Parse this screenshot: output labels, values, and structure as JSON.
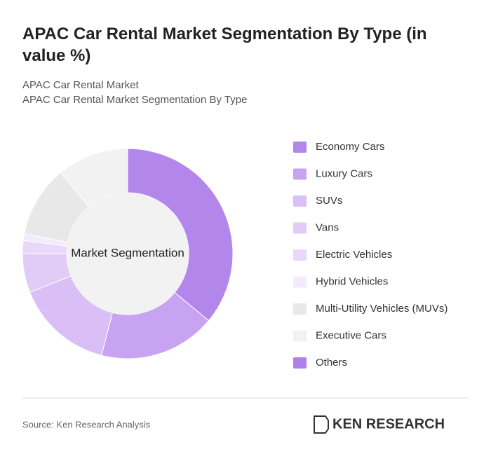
{
  "chart_data": {
    "type": "donut",
    "title": "APAC Car Rental Market Segmentation By Type (in value %)",
    "subtitle": [
      "APAC Car Rental Market",
      "APAC Car Rental Market Segmentation By Type"
    ],
    "center_label": "Market Segmentation",
    "categories": [
      "Economy Cars",
      "Luxury Cars",
      "SUVs",
      "Vans",
      "Electric Vehicles",
      "Hybrid Vehicles",
      "Multi-Utility Vehicles (MUVs)",
      "Executive Cars",
      "Others"
    ],
    "values": [
      36,
      18,
      15,
      6,
      2,
      1,
      11,
      11,
      0
    ],
    "colors": [
      "#b386eb",
      "#c7a3f1",
      "#d9bff6",
      "#e1ccf7",
      "#e9d8fa",
      "#f3ebfc",
      "#e8e8e8",
      "#f2f2f2",
      "#b07fe8"
    ],
    "legend": "right"
  },
  "source": "Source: Ken Research Analysis",
  "logo": "KEN RESEARCH"
}
